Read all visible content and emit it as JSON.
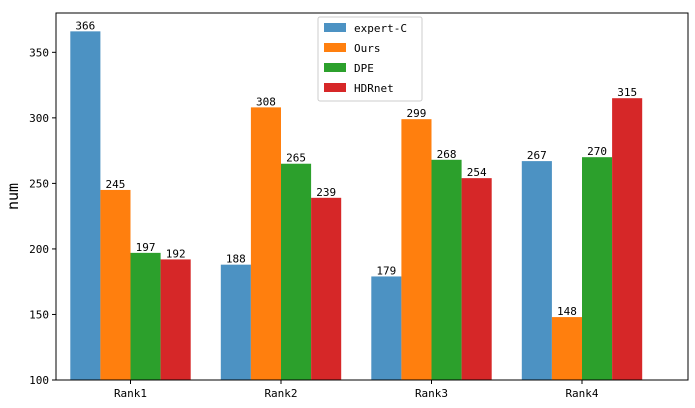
{
  "chart_data": {
    "type": "bar",
    "title": "",
    "xlabel": "",
    "ylabel": "num",
    "categories": [
      "Rank1",
      "Rank2",
      "Rank3",
      "Rank4"
    ],
    "series": [
      {
        "name": "expert-C",
        "color": "#4c92c3",
        "values": [
          366,
          188,
          179,
          267
        ]
      },
      {
        "name": "Ours",
        "color": "#ff7f0e",
        "values": [
          245,
          308,
          299,
          148
        ]
      },
      {
        "name": "DPE",
        "color": "#2ca02c",
        "values": [
          197,
          265,
          268,
          270
        ]
      },
      {
        "name": "HDRnet",
        "color": "#d62728",
        "values": [
          192,
          239,
          254,
          315
        ]
      }
    ],
    "ylim": [
      100,
      380
    ],
    "yticks": [
      100,
      150,
      200,
      250,
      300,
      350
    ],
    "grid": false,
    "legend_position": "top-center",
    "data_labels": true
  }
}
